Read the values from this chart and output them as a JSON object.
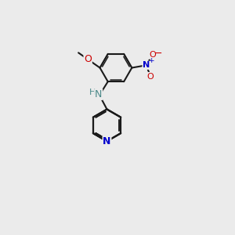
{
  "background_color": "#ebebeb",
  "bond_color": "#1a1a1a",
  "N_color": "#0000cc",
  "O_color": "#cc0000",
  "NH_color": "#4a8888",
  "figsize": [
    3.0,
    3.0
  ],
  "dpi": 100,
  "u": 0.68,
  "lw": 1.5,
  "lw_d": 1.1,
  "off": 0.065,
  "shrink": 0.14,
  "acridine_C9": [
    4.55,
    5.35
  ],
  "xlim": [
    0,
    10
  ],
  "ylim": [
    0,
    10
  ]
}
